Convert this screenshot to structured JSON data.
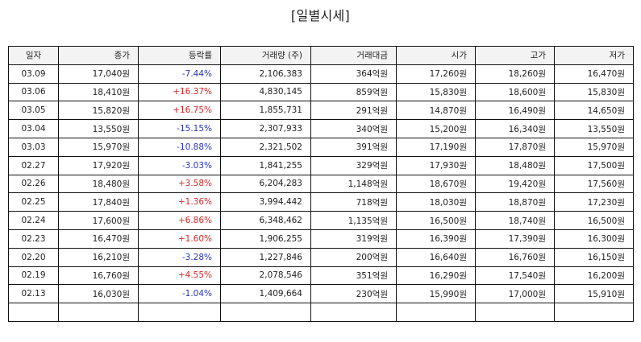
{
  "title": "[일별시세]",
  "colors": {
    "up": "#d62a2a",
    "down": "#2b34b8",
    "header_bg": "#f3f3f3",
    "border": "#111111"
  },
  "table": {
    "headers": [
      "일자",
      "종가",
      "등락률",
      "거래량 (주)",
      "거래대금",
      "시가",
      "고가",
      "저가"
    ],
    "rows": [
      {
        "date": "03.09",
        "close": "17,040원",
        "change": "-7.44%",
        "direction": "down",
        "volume": "2,106,383",
        "amount": "364억원",
        "open": "17,260원",
        "high": "18,260원",
        "low": "16,470원"
      },
      {
        "date": "03.06",
        "close": "18,410원",
        "change": "+16.37%",
        "direction": "up",
        "volume": "4,830,145",
        "amount": "859억원",
        "open": "15,830원",
        "high": "18,600원",
        "low": "15,830원"
      },
      {
        "date": "03.05",
        "close": "15,820원",
        "change": "+16.75%",
        "direction": "up",
        "volume": "1,855,731",
        "amount": "291억원",
        "open": "14,870원",
        "high": "16,490원",
        "low": "14,650원"
      },
      {
        "date": "03.04",
        "close": "13,550원",
        "change": "-15.15%",
        "direction": "down",
        "volume": "2,307,933",
        "amount": "340억원",
        "open": "15,200원",
        "high": "16,340원",
        "low": "13,550원"
      },
      {
        "date": "03.03",
        "close": "15,970원",
        "change": "-10.88%",
        "direction": "down",
        "volume": "2,321,502",
        "amount": "391억원",
        "open": "17,190원",
        "high": "17,870원",
        "low": "15,970원"
      },
      {
        "date": "02.27",
        "close": "17,920원",
        "change": "-3.03%",
        "direction": "down",
        "volume": "1,841,255",
        "amount": "329억원",
        "open": "17,930원",
        "high": "18,480원",
        "low": "17,500원"
      },
      {
        "date": "02.26",
        "close": "18,480원",
        "change": "+3.58%",
        "direction": "up",
        "volume": "6,204,283",
        "amount": "1,148억원",
        "open": "18,670원",
        "high": "19,420원",
        "low": "17,560원"
      },
      {
        "date": "02.25",
        "close": "17,840원",
        "change": "+1.36%",
        "direction": "up",
        "volume": "3,994,442",
        "amount": "718억원",
        "open": "18,030원",
        "high": "18,870원",
        "low": "17,230원"
      },
      {
        "date": "02.24",
        "close": "17,600원",
        "change": "+6.86%",
        "direction": "up",
        "volume": "6,348,462",
        "amount": "1,135억원",
        "open": "16,500원",
        "high": "18,740원",
        "low": "16,500원"
      },
      {
        "date": "02.23",
        "close": "16,470원",
        "change": "+1.60%",
        "direction": "up",
        "volume": "1,906,255",
        "amount": "319억원",
        "open": "16,390원",
        "high": "17,390원",
        "low": "16,300원"
      },
      {
        "date": "02.20",
        "close": "16,210원",
        "change": "-3.28%",
        "direction": "down",
        "volume": "1,227,846",
        "amount": "200억원",
        "open": "16,640원",
        "high": "16,760원",
        "low": "16,150원"
      },
      {
        "date": "02.19",
        "close": "16,760원",
        "change": "+4.55%",
        "direction": "up",
        "volume": "2,078,546",
        "amount": "351억원",
        "open": "16,290원",
        "high": "17,540원",
        "low": "16,200원"
      },
      {
        "date": "02.13",
        "close": "16,030원",
        "change": "-1.04%",
        "direction": "down",
        "volume": "1,409,664",
        "amount": "230억원",
        "open": "15,990원",
        "high": "17,000원",
        "low": "15,910원"
      }
    ]
  }
}
